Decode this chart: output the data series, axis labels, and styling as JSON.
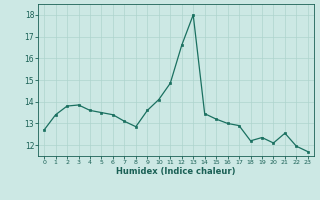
{
  "title": "",
  "xlabel": "Humidex (Indice chaleur)",
  "ylabel": "",
  "x": [
    0,
    1,
    2,
    3,
    4,
    5,
    6,
    7,
    8,
    9,
    10,
    11,
    12,
    13,
    14,
    15,
    16,
    17,
    18,
    19,
    20,
    21,
    22,
    23
  ],
  "y": [
    12.7,
    13.4,
    13.8,
    13.85,
    13.6,
    13.5,
    13.4,
    13.1,
    12.85,
    13.6,
    14.1,
    14.85,
    16.6,
    18.0,
    13.45,
    13.2,
    13.0,
    12.9,
    12.2,
    12.35,
    12.1,
    12.55,
    11.95,
    11.7
  ],
  "line_color": "#1a7060",
  "marker_color": "#1a7060",
  "bg_color": "#cce8e4",
  "grid_color": "#aed4ce",
  "tick_label_color": "#1a6055",
  "axis_color": "#1a6055",
  "ylim": [
    11.5,
    18.5
  ],
  "yticks": [
    12,
    13,
    14,
    15,
    16,
    17,
    18
  ],
  "xlim": [
    -0.5,
    23.5
  ]
}
